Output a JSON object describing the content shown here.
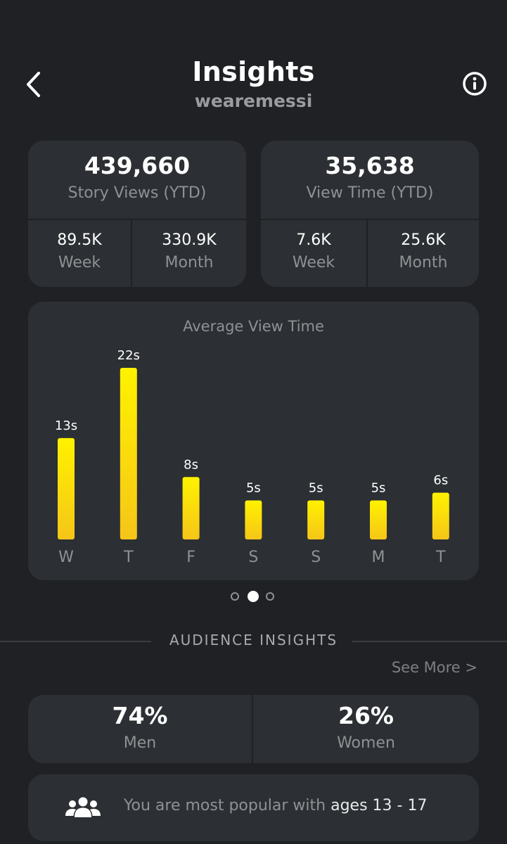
{
  "header": {
    "title": "Insights",
    "username": "wearemessi",
    "back_icon": "chevron-left-icon",
    "info_icon": "info-circle-icon"
  },
  "stats": {
    "story_views": {
      "value": "439,660",
      "label": "Story Views (YTD)",
      "week_value": "89.5K",
      "week_label": "Week",
      "month_value": "330.9K",
      "month_label": "Month"
    },
    "view_time": {
      "value": "35,638",
      "label": "View Time (YTD)",
      "week_value": "7.6K",
      "week_label": "Week",
      "month_value": "25.6K",
      "month_label": "Month"
    }
  },
  "chart_data": {
    "type": "bar",
    "title": "Average View Time",
    "categories": [
      "W",
      "T",
      "F",
      "S",
      "S",
      "M",
      "T"
    ],
    "values": [
      13,
      22,
      8,
      5,
      5,
      5,
      6
    ],
    "value_labels": [
      "13s",
      "22s",
      "8s",
      "5s",
      "5s",
      "5s",
      "6s"
    ],
    "bar_color_top": "#FFF200",
    "bar_color_bottom": "#F5C518"
  },
  "pager": {
    "count": 3,
    "active_index": 1
  },
  "audience": {
    "section_title": "AUDIENCE INSIGHTS",
    "see_more": "See More >",
    "men_value": "74%",
    "men_label": "Men",
    "women_value": "26%",
    "women_label": "Women",
    "popular_prefix": "You are most popular with ",
    "popular_highlight": "ages 13 - 17",
    "people_icon": "people-group-icon"
  },
  "colors": {
    "background": "#1F2124",
    "card": "#2C2F33",
    "muted_text": "#8F9194",
    "accent": "#FFE600"
  }
}
